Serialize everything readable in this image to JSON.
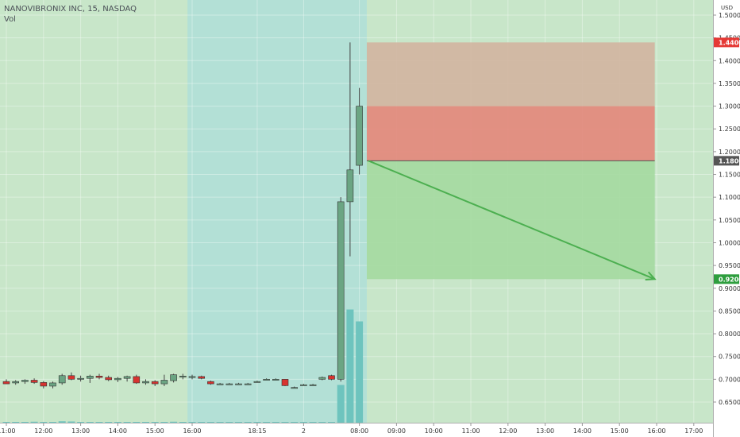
{
  "chart_data": {
    "type": "candlestick",
    "symbol_label": "NANOVIBRONIX INC, 15, NASDAQ",
    "volume_label": "Vol",
    "currency": "USD",
    "colors": {
      "up": "#6ba583",
      "down": "#d7332f",
      "volume": "#6ec4be",
      "session_background": "#c8e6c9",
      "extended_background": "#b3e0d6",
      "stop_zone": "#e3867a",
      "stop_zone_upper": "#d2b4a0",
      "target_zone": "#a4d9a0",
      "arrow": "#4caf50"
    },
    "y_axis": {
      "range": [
        0.6,
        1.51
      ],
      "ticks": [
        "1.5000",
        "1.4500",
        "1.4000",
        "1.3500",
        "1.3000",
        "1.2500",
        "1.2000",
        "1.1500",
        "1.1000",
        "1.0500",
        "1.0000",
        "0.9500",
        "0.9000",
        "0.8500",
        "0.8000",
        "0.7500",
        "0.7000",
        "0.6500"
      ]
    },
    "price_labels": [
      {
        "text": "1.4400",
        "value": 1.44,
        "color": "#e53935"
      },
      {
        "text": "1.1800",
        "value": 1.18,
        "color": "#555555"
      },
      {
        "text": "0.9200",
        "value": 0.92,
        "color": "#2e9e3e"
      }
    ],
    "x_axis": {
      "ticks": [
        {
          "label": "11:00",
          "index": 0
        },
        {
          "label": "12:00",
          "index": 4
        },
        {
          "label": "13:00",
          "index": 8
        },
        {
          "label": "14:00",
          "index": 12
        },
        {
          "label": "15:00",
          "index": 16
        },
        {
          "label": "16:00",
          "index": 20
        },
        {
          "label": "18:15",
          "index": 27
        },
        {
          "label": "2",
          "index": 32
        },
        {
          "label": "08:00",
          "index": 38
        },
        {
          "label": "09:00",
          "index": 42
        },
        {
          "label": "10:00",
          "index": 46
        },
        {
          "label": "11:00",
          "index": 50
        },
        {
          "label": "12:00",
          "index": 54
        },
        {
          "label": "13:00",
          "index": 58
        },
        {
          "label": "14:00",
          "index": 62
        },
        {
          "label": "15:00",
          "index": 66
        },
        {
          "label": "16:00",
          "index": 70
        },
        {
          "label": "17:00",
          "index": 74
        }
      ]
    },
    "sessions": {
      "extended_start_index": 19.5,
      "extended_end_index": 38.8
    },
    "candles": [
      {
        "o": 0.695,
        "h": 0.7,
        "l": 0.69,
        "c": 0.69
      },
      {
        "o": 0.692,
        "h": 0.698,
        "l": 0.688,
        "c": 0.695
      },
      {
        "o": 0.695,
        "h": 0.7,
        "l": 0.69,
        "c": 0.698
      },
      {
        "o": 0.698,
        "h": 0.702,
        "l": 0.69,
        "c": 0.693
      },
      {
        "o": 0.693,
        "h": 0.696,
        "l": 0.68,
        "c": 0.685
      },
      {
        "o": 0.685,
        "h": 0.695,
        "l": 0.68,
        "c": 0.692
      },
      {
        "o": 0.692,
        "h": 0.712,
        "l": 0.688,
        "c": 0.708
      },
      {
        "o": 0.708,
        "h": 0.715,
        "l": 0.698,
        "c": 0.7
      },
      {
        "o": 0.7,
        "h": 0.708,
        "l": 0.695,
        "c": 0.702
      },
      {
        "o": 0.702,
        "h": 0.71,
        "l": 0.692,
        "c": 0.707
      },
      {
        "o": 0.707,
        "h": 0.712,
        "l": 0.7,
        "c": 0.704
      },
      {
        "o": 0.704,
        "h": 0.708,
        "l": 0.696,
        "c": 0.699
      },
      {
        "o": 0.699,
        "h": 0.705,
        "l": 0.694,
        "c": 0.702
      },
      {
        "o": 0.702,
        "h": 0.708,
        "l": 0.695,
        "c": 0.706
      },
      {
        "o": 0.706,
        "h": 0.71,
        "l": 0.69,
        "c": 0.692
      },
      {
        "o": 0.692,
        "h": 0.7,
        "l": 0.688,
        "c": 0.695
      },
      {
        "o": 0.695,
        "h": 0.698,
        "l": 0.685,
        "c": 0.69
      },
      {
        "o": 0.69,
        "h": 0.71,
        "l": 0.685,
        "c": 0.698
      },
      {
        "o": 0.697,
        "h": 0.712,
        "l": 0.693,
        "c": 0.71
      },
      {
        "o": 0.706,
        "h": 0.712,
        "l": 0.7,
        "c": 0.707
      },
      {
        "o": 0.706,
        "h": 0.71,
        "l": 0.7,
        "c": 0.706
      },
      {
        "o": 0.706,
        "h": 0.708,
        "l": 0.7,
        "c": 0.702
      },
      {
        "o": 0.695,
        "h": 0.697,
        "l": 0.688,
        "c": 0.69
      },
      {
        "o": 0.69,
        "h": 0.692,
        "l": 0.688,
        "c": 0.69
      },
      {
        "o": 0.69,
        "h": 0.692,
        "l": 0.688,
        "c": 0.69
      },
      {
        "o": 0.69,
        "h": 0.692,
        "l": 0.688,
        "c": 0.69
      },
      {
        "o": 0.69,
        "h": 0.692,
        "l": 0.688,
        "c": 0.69
      },
      {
        "o": 0.695,
        "h": 0.697,
        "l": 0.693,
        "c": 0.695
      },
      {
        "o": 0.7,
        "h": 0.702,
        "l": 0.698,
        "c": 0.7
      },
      {
        "o": 0.7,
        "h": 0.702,
        "l": 0.698,
        "c": 0.7
      },
      {
        "o": 0.7,
        "h": 0.7,
        "l": 0.685,
        "c": 0.686
      },
      {
        "o": 0.682,
        "h": 0.684,
        "l": 0.68,
        "c": 0.682
      },
      {
        "o": 0.688,
        "h": 0.69,
        "l": 0.686,
        "c": 0.688
      },
      {
        "o": 0.688,
        "h": 0.69,
        "l": 0.686,
        "c": 0.688
      },
      {
        "o": 0.7,
        "h": 0.706,
        "l": 0.698,
        "c": 0.704
      },
      {
        "o": 0.708,
        "h": 0.71,
        "l": 0.698,
        "c": 0.7
      },
      {
        "o": 0.7,
        "h": 1.1,
        "l": 0.695,
        "c": 1.09
      },
      {
        "o": 1.09,
        "h": 1.44,
        "l": 0.97,
        "c": 1.16
      },
      {
        "o": 1.17,
        "h": 1.34,
        "l": 1.15,
        "c": 1.3
      }
    ],
    "volumes": [
      0.004,
      0.003,
      0.003,
      0.005,
      0.004,
      0.003,
      0.007,
      0.006,
      0.004,
      0.004,
      0.003,
      0.003,
      0.003,
      0.004,
      0.003,
      0.003,
      0.004,
      0.003,
      0.005,
      0.004,
      0.002,
      0.001,
      0.001,
      0.001,
      0.001,
      0.001,
      0.001,
      0.001,
      0.001,
      0.001,
      0.001,
      0.001,
      0.001,
      0.001,
      0.001,
      0.001,
      0.19,
      0.57,
      0.51
    ],
    "position": {
      "type": "short",
      "entry": 1.18,
      "stop": 1.3,
      "stop_label": 1.44,
      "target": 0.92,
      "start_index": 38.8,
      "end_index": 69.8
    }
  }
}
